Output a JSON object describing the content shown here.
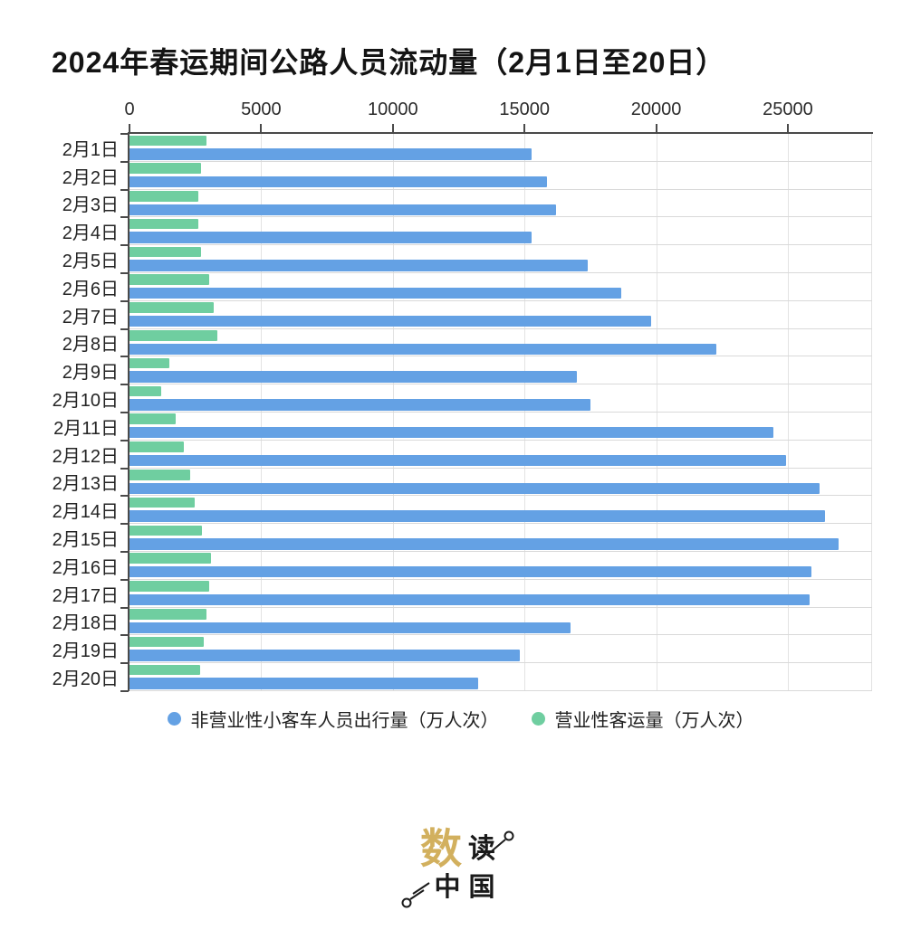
{
  "title": "2024年春运期间公路人员流动量（2月1日至20日）",
  "chart_data": {
    "type": "bar",
    "orientation": "horizontal",
    "title": "2024年春运期间公路人员流动量（2月1日至20日）",
    "categories": [
      "2月1日",
      "2月2日",
      "2月3日",
      "2月4日",
      "2月5日",
      "2月6日",
      "2月7日",
      "2月8日",
      "2月9日",
      "2月10日",
      "2月11日",
      "2月12日",
      "2月13日",
      "2月14日",
      "2月15日",
      "2月16日",
      "2月17日",
      "2月18日",
      "2月19日",
      "2月20日"
    ],
    "series": [
      {
        "name": "非营业性小客车人员出行量（万人次）",
        "color": "#64a1e4",
        "row_position": "bottom",
        "values": [
          15280,
          15860,
          16200,
          15280,
          17410,
          18690,
          19800,
          22270,
          16990,
          17490,
          24450,
          24920,
          26190,
          26410,
          26920,
          25890,
          25840,
          16740,
          14830,
          13240
        ]
      },
      {
        "name": "营业性客运量（万人次）",
        "color": "#6fcea0",
        "row_position": "top",
        "values": [
          2930,
          2710,
          2620,
          2610,
          2710,
          3040,
          3190,
          3320,
          1500,
          1190,
          1760,
          2070,
          2300,
          2490,
          2760,
          3100,
          3030,
          2940,
          2810,
          2670
        ]
      }
    ],
    "x_axis": {
      "position": "top",
      "ticks": [
        0,
        5000,
        10000,
        15000,
        20000,
        25000
      ],
      "max": 28200
    },
    "grid": true,
    "legend_position": "bottom"
  },
  "legend": {
    "items": [
      {
        "label": "非营业性小客车人员出行量（万人次）",
        "color": "#64a1e4"
      },
      {
        "label": "营业性客运量（万人次）",
        "color": "#6fcea0"
      }
    ]
  },
  "watermark": {
    "gold_char": "数",
    "black_char": "读",
    "bottom_char_1": "中",
    "bottom_char_2": "国",
    "gold_color": "#d2b05e",
    "ink_color": "#1a1a1a"
  }
}
